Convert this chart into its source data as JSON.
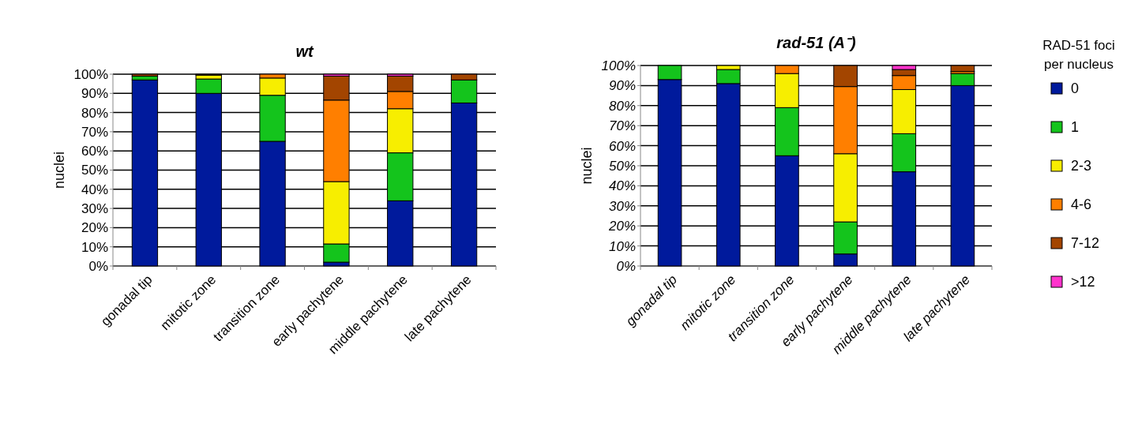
{
  "chart_data": [
    {
      "type": "bar",
      "title": "wt",
      "ylabel": "nuclei",
      "stacked": true,
      "grid": "y",
      "legend": false,
      "categories": [
        "gonadal tip",
        "mitotic zone",
        "transition zone",
        "early pachytene",
        "middle pachytene",
        "late pachytene"
      ],
      "ylim": [
        0,
        100
      ],
      "yticks": [
        {
          "value": 0,
          "label": "0%"
        },
        {
          "value": 10,
          "label": "10%"
        },
        {
          "value": 20,
          "label": "20%"
        },
        {
          "value": 30,
          "label": "30%"
        },
        {
          "value": 40,
          "label": "40%"
        },
        {
          "value": 50,
          "label": "50%"
        },
        {
          "value": 60,
          "label": "60%"
        },
        {
          "value": 70,
          "label": "70%"
        },
        {
          "value": 80,
          "label": "80%"
        },
        {
          "value": 90,
          "label": "90%"
        },
        {
          "value": 100,
          "label": "100%"
        }
      ],
      "series": [
        {
          "color": "#001a9c",
          "values": [
            97,
            90,
            65,
            2,
            34,
            85
          ]
        },
        {
          "color": "#14c41c",
          "values": [
            2,
            7.5,
            24,
            9.5,
            25,
            12
          ]
        },
        {
          "color": "#f7ee00",
          "values": [
            0,
            2,
            9,
            32.5,
            23,
            0
          ]
        },
        {
          "color": "#ff7f00",
          "values": [
            0,
            0,
            2,
            42.5,
            9,
            0
          ]
        },
        {
          "color": "#a34500",
          "values": [
            1,
            0.5,
            0,
            12.5,
            8,
            3
          ]
        },
        {
          "color": "#ff33cc",
          "values": [
            0,
            0,
            0,
            1,
            1,
            0
          ]
        }
      ]
    },
    {
      "type": "bar",
      "title": "rad-51 (A⁻)",
      "ylabel": "nuclei",
      "stacked": true,
      "grid": "y",
      "legend": "right",
      "legend_title": "RAD-51 foci per nucleus",
      "categories": [
        "gonadal tip",
        "mitotic zone",
        "transition zone",
        "early pachytene",
        "middle pachytene",
        "late pachytene"
      ],
      "ylim": [
        0,
        100
      ],
      "yticks": [
        {
          "value": 0,
          "label": "0%"
        },
        {
          "value": 10,
          "label": "10%"
        },
        {
          "value": 20,
          "label": "20%"
        },
        {
          "value": 30,
          "label": "30%"
        },
        {
          "value": 40,
          "label": "40%"
        },
        {
          "value": 50,
          "label": "50%"
        },
        {
          "value": 60,
          "label": "60%"
        },
        {
          "value": 70,
          "label": "70%"
        },
        {
          "value": 80,
          "label": "80%"
        },
        {
          "value": 90,
          "label": "90%"
        },
        {
          "value": 100,
          "label": "100%"
        }
      ],
      "series": [
        {
          "name": "0",
          "color": "#001a9c",
          "values": [
            93,
            91,
            55,
            6,
            47,
            90
          ]
        },
        {
          "name": "1",
          "color": "#14c41c",
          "values": [
            7,
            7,
            24,
            16,
            19,
            6
          ]
        },
        {
          "name": "2-3",
          "color": "#f7ee00",
          "values": [
            0,
            2,
            17,
            34,
            22,
            0
          ]
        },
        {
          "name": "4-6",
          "color": "#ff7f00",
          "values": [
            0,
            0,
            4,
            33.5,
            7,
            1
          ]
        },
        {
          "name": "7-12",
          "color": "#a34500",
          "values": [
            0,
            0,
            0,
            10.5,
            3,
            3
          ]
        },
        {
          "name": ">12",
          "color": "#ff33cc",
          "values": [
            0,
            0,
            0,
            0,
            2,
            0
          ]
        }
      ]
    }
  ]
}
